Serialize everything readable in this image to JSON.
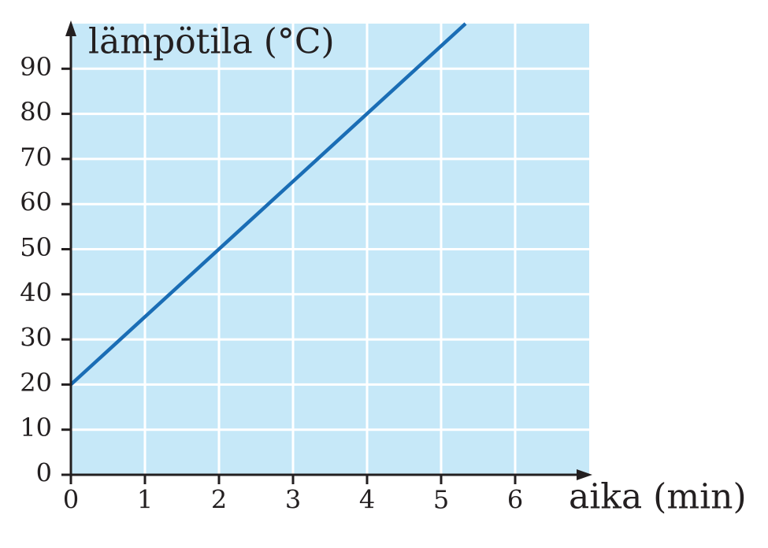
{
  "chart_data": {
    "type": "line",
    "y_label": "lämpötila (°C)",
    "x_label": "aika (min)",
    "x": [
      0,
      5.33
    ],
    "series": [
      {
        "color": "#1a6db5",
        "values": [
          20,
          100
        ]
      }
    ],
    "xlim": [
      0,
      7
    ],
    "ylim": [
      0,
      100
    ],
    "xticks": [
      0,
      1,
      2,
      3,
      4,
      5,
      6
    ],
    "yticks": [
      0,
      10,
      20,
      30,
      40,
      50,
      60,
      70,
      80,
      90
    ],
    "grid": true,
    "background": "#c6e8f8",
    "grid_color": "#ffffff"
  }
}
